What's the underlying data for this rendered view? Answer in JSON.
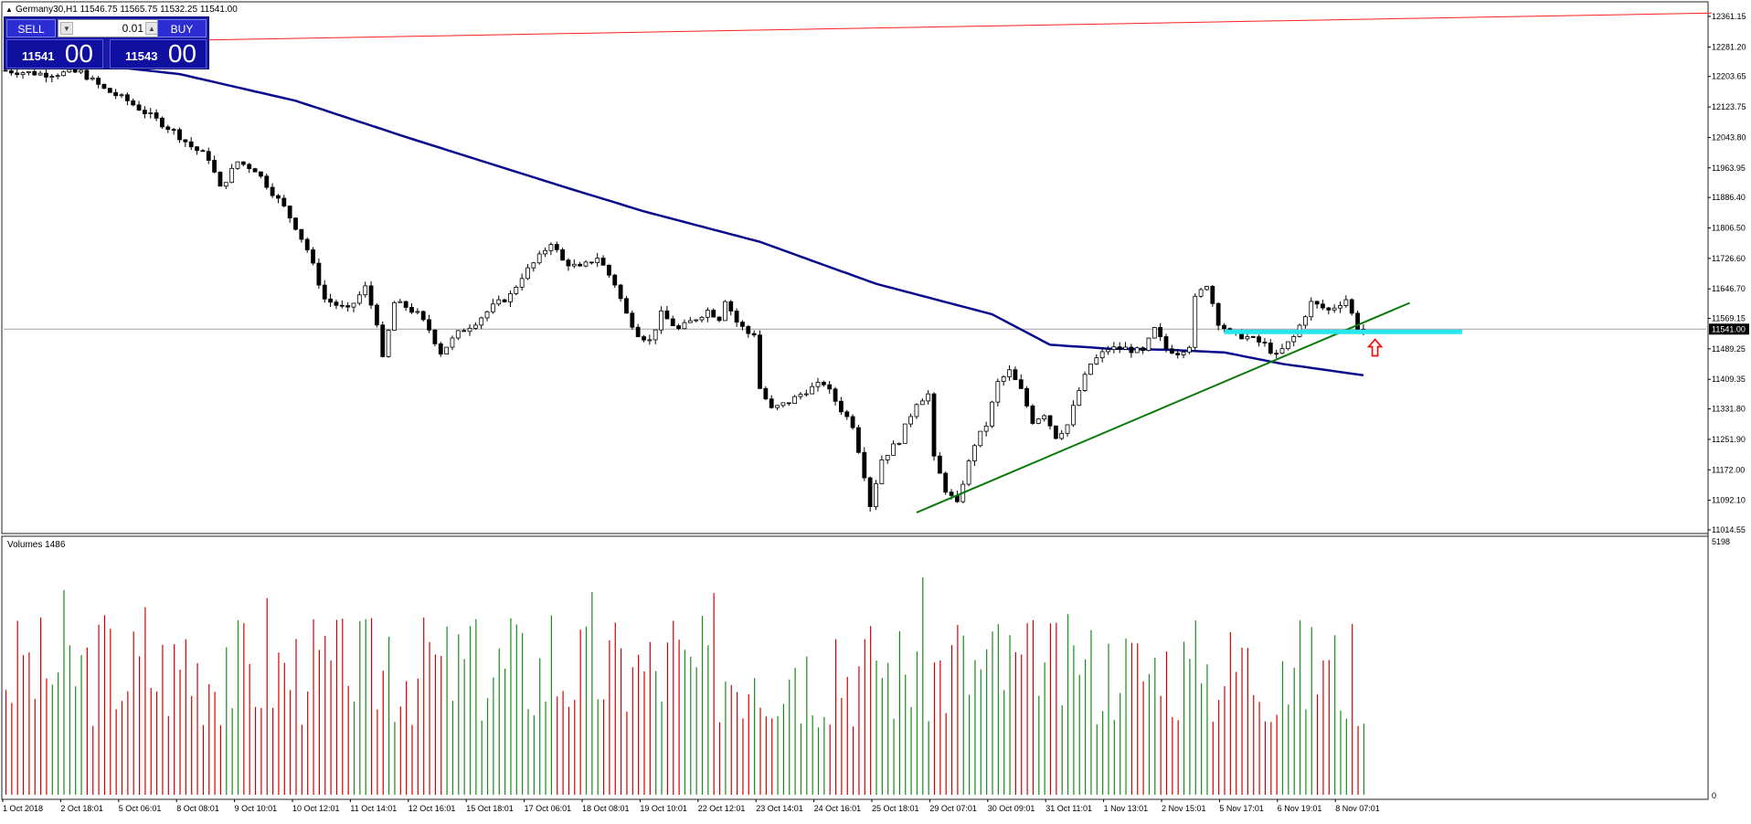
{
  "header": {
    "info": "Germany30,H1  11546.75 11565.75 11532.25 11541.00",
    "menu_icon": "triangle-down-icon"
  },
  "volumes_label": "Volumes 1486",
  "trade_panel": {
    "sell_label": "SELL",
    "buy_label": "BUY",
    "lot_value": "0.01",
    "sell_price_small": "11541",
    "sell_price_big": "00",
    "buy_price_small": "11543",
    "buy_price_big": "00"
  },
  "colors": {
    "bull": "#1a8a1a",
    "bear": "#d40000",
    "ma": "#0a0a8c",
    "resistance_line": "#ff2020",
    "trendline": "#0a7a0a",
    "support_zone": "#28e6ee",
    "current_price_line": "#a0a0a0",
    "arrow": "#ff0000"
  },
  "chart_data": {
    "type": "candlestick",
    "symbol": "Germany30",
    "timeframe": "H1",
    "ohlc_header": {
      "open": 11546.75,
      "high": 11565.75,
      "low": 11532.25,
      "close": 11541.0
    },
    "y_ticks": [
      "12361.15",
      "12281.20",
      "12203.65",
      "12123.75",
      "12043.80",
      "11963.95",
      "11886.40",
      "11806.50",
      "11726.60",
      "11646.70",
      "11569.15",
      "11489.25",
      "11409.35",
      "11331.80",
      "11251.90",
      "11172.00",
      "11092.10",
      "11014.55"
    ],
    "ylim": [
      11014.55,
      12361.15
    ],
    "current_price": 11541.0,
    "current_price_label": "11541.00",
    "x_labels": [
      "1 Oct 2018",
      "2 Oct 18:01",
      "5 Oct 06:01",
      "8 Oct 08:01",
      "9 Oct 10:01",
      "10 Oct 12:01",
      "11 Oct 14:01",
      "12 Oct 16:01",
      "15 Oct 18:01",
      "17 Oct 06:01",
      "18 Oct 08:01",
      "19 Oct 10:01",
      "22 Oct 12:01",
      "23 Oct 14:01",
      "24 Oct 16:01",
      "25 Oct 18:01",
      "29 Oct 07:01",
      "30 Oct 09:01",
      "31 Oct 11:01",
      "1 Nov 13:01",
      "2 Nov 15:01",
      "5 Nov 17:01",
      "6 Nov 19:01",
      "8 Nov 07:01"
    ],
    "bar_count": 235,
    "close_path": [
      [
        0,
        12220
      ],
      [
        8,
        12210
      ],
      [
        14,
        12215
      ],
      [
        18,
        12170
      ],
      [
        22,
        12140
      ],
      [
        26,
        12100
      ],
      [
        30,
        12060
      ],
      [
        33,
        12020
      ],
      [
        36,
        11990
      ],
      [
        38,
        11910
      ],
      [
        41,
        11980
      ],
      [
        44,
        11960
      ],
      [
        46,
        11920
      ],
      [
        49,
        11860
      ],
      [
        51,
        11810
      ],
      [
        53,
        11750
      ],
      [
        56,
        11620
      ],
      [
        60,
        11590
      ],
      [
        63,
        11650
      ],
      [
        65,
        11560
      ],
      [
        66,
        11460
      ],
      [
        68,
        11610
      ],
      [
        70,
        11600
      ],
      [
        72,
        11580
      ],
      [
        74,
        11540
      ],
      [
        76,
        11480
      ],
      [
        79,
        11530
      ],
      [
        82,
        11560
      ],
      [
        85,
        11600
      ],
      [
        88,
        11630
      ],
      [
        90,
        11680
      ],
      [
        93,
        11730
      ],
      [
        95,
        11770
      ],
      [
        97,
        11720
      ],
      [
        100,
        11700
      ],
      [
        103,
        11730
      ],
      [
        106,
        11660
      ],
      [
        108,
        11580
      ],
      [
        110,
        11530
      ],
      [
        112,
        11510
      ],
      [
        114,
        11580
      ],
      [
        117,
        11540
      ],
      [
        120,
        11570
      ],
      [
        122,
        11590
      ],
      [
        124,
        11570
      ],
      [
        125,
        11620
      ],
      [
        127,
        11560
      ],
      [
        129,
        11530
      ],
      [
        130,
        11530
      ],
      [
        130.5,
        11400
      ],
      [
        133,
        11330
      ],
      [
        136,
        11350
      ],
      [
        139,
        11380
      ],
      [
        142,
        11400
      ],
      [
        145,
        11330
      ],
      [
        147,
        11290
      ],
      [
        149,
        11160
      ],
      [
        150,
        11080
      ],
      [
        152,
        11200
      ],
      [
        155,
        11250
      ],
      [
        158,
        11350
      ],
      [
        160,
        11370
      ],
      [
        161,
        11200
      ],
      [
        163,
        11120
      ],
      [
        165,
        11080
      ],
      [
        166,
        11140
      ],
      [
        168,
        11240
      ],
      [
        170,
        11290
      ],
      [
        172,
        11400
      ],
      [
        174,
        11430
      ],
      [
        176,
        11380
      ],
      [
        178,
        11300
      ],
      [
        180,
        11320
      ],
      [
        182,
        11260
      ],
      [
        184,
        11290
      ],
      [
        186,
        11380
      ],
      [
        188,
        11450
      ],
      [
        191,
        11490
      ],
      [
        194,
        11490
      ],
      [
        197,
        11480
      ],
      [
        199,
        11540
      ],
      [
        201,
        11490
      ],
      [
        203,
        11480
      ],
      [
        205,
        11500
      ],
      [
        206,
        11620
      ],
      [
        208,
        11660
      ],
      [
        210,
        11560
      ],
      [
        212,
        11530
      ],
      [
        215,
        11520
      ],
      [
        218,
        11500
      ],
      [
        220,
        11470
      ],
      [
        223,
        11520
      ],
      [
        226,
        11610
      ],
      [
        229,
        11590
      ],
      [
        232,
        11620
      ],
      [
        234,
        11541
      ]
    ],
    "ma_path": [
      [
        0,
        12260
      ],
      [
        30,
        12210
      ],
      [
        50,
        12140
      ],
      [
        70,
        12040
      ],
      [
        95,
        11920
      ],
      [
        110,
        11850
      ],
      [
        130,
        11770
      ],
      [
        150,
        11660
      ],
      [
        170,
        11580
      ],
      [
        180,
        11500
      ],
      [
        190,
        11490
      ],
      [
        200,
        11487
      ],
      [
        210,
        11480
      ],
      [
        220,
        11450
      ],
      [
        234,
        11420
      ]
    ],
    "volumes": {
      "max_label": "5198",
      "min_label": "0",
      "ylim": [
        0,
        5198
      ],
      "current": 1486
    },
    "drawings": {
      "resistance_line": {
        "from": [
          0,
          12290
        ],
        "to": [
          294,
          12370
        ]
      },
      "trendline": {
        "from": [
          157,
          11060
        ],
        "to": [
          242,
          11610
        ]
      },
      "support_zone": {
        "from_bar": 210,
        "to_bar": 251,
        "price": 11541
      },
      "arrow": {
        "bar": 236,
        "price": 11490,
        "direction": "up"
      }
    }
  }
}
